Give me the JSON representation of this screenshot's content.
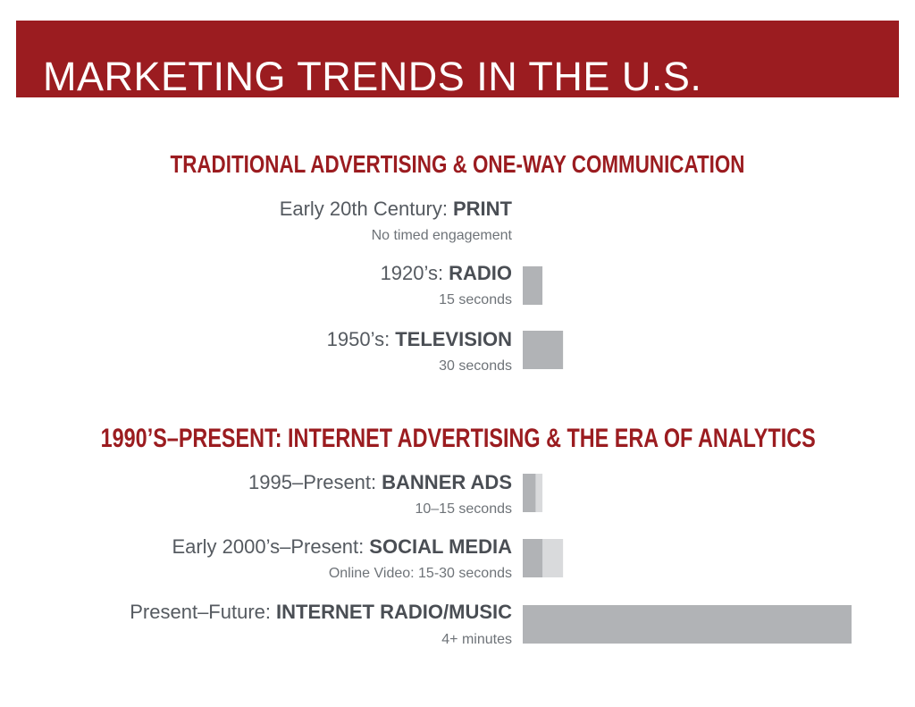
{
  "header": {
    "title": "MARKETING TRENDS IN THE U.S."
  },
  "colors": {
    "accent": "#9b1c20",
    "bar_primary": "#b1b3b6",
    "bar_secondary": "#d9dadc",
    "label_dark": "#4a4e54"
  },
  "chart_data": {
    "type": "bar",
    "orientation": "horizontal",
    "sections": [
      {
        "title": "TRADITIONAL ADVERTISING & ONE-WAY COMMUNICATION",
        "rows": [
          {
            "era": "Early 20th Century:",
            "medium": "PRINT",
            "detail": "No timed engagement",
            "value": 0
          },
          {
            "era": "1920’s:",
            "medium": "RADIO",
            "detail": "15 seconds",
            "value": 15
          },
          {
            "era": "1950’s:",
            "medium": "TELEVISION",
            "detail": "30 seconds",
            "value": 30
          }
        ]
      },
      {
        "title": "1990’S–PRESENT: INTERNET ADVERTISING & THE ERA OF ANALYTICS",
        "rows": [
          {
            "era": "1995–Present:",
            "medium": "BANNER ADS",
            "detail": "10–15 seconds",
            "value": 10,
            "value_max": 15
          },
          {
            "era": "Early 2000’s–Present:",
            "medium": "SOCIAL MEDIA",
            "detail": "Online Video: 15-30 seconds",
            "value": 15,
            "value_max": 30
          },
          {
            "era": "Present–Future:",
            "medium": "INTERNET RADIO/MUSIC",
            "detail": "4+ minutes",
            "value": 240
          }
        ]
      }
    ],
    "unit": "seconds",
    "xlim": [
      0,
      240
    ]
  }
}
